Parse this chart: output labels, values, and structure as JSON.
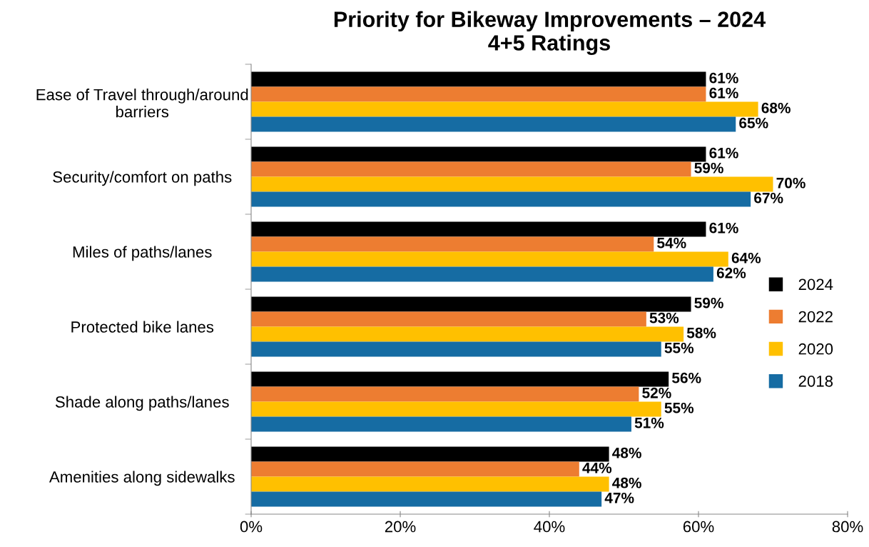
{
  "chart_data": {
    "type": "bar",
    "orientation": "horizontal",
    "title": "Priority for Bikeway Improvements – 2024\n4+5 Ratings",
    "categories": [
      "Ease of Travel through/around\nbarriers",
      "Security/comfort on paths",
      "Miles of paths/lanes",
      "Protected bike lanes",
      "Shade along paths/lanes",
      "Amenities along sidewalks"
    ],
    "series": [
      {
        "name": "2024",
        "color": "#000000",
        "values": [
          61,
          61,
          61,
          59,
          56,
          48
        ],
        "value_labels": [
          "61%",
          "61%",
          "61%",
          "59%",
          "56%",
          "48%"
        ]
      },
      {
        "name": "2022",
        "color": "#ed7d31",
        "values": [
          61,
          59,
          54,
          53,
          52,
          44
        ],
        "value_labels": [
          "61%",
          "59%",
          "54%",
          "53%",
          "52%",
          "44%"
        ]
      },
      {
        "name": "2020",
        "color": "#ffc000",
        "values": [
          68,
          70,
          64,
          58,
          55,
          48
        ],
        "value_labels": [
          "68%",
          "70%",
          "64%",
          "58%",
          "55%",
          "48%"
        ]
      },
      {
        "name": "2018",
        "color": "#166ca3",
        "values": [
          65,
          67,
          62,
          55,
          51,
          47
        ],
        "value_labels": [
          "65%",
          "67%",
          "62%",
          "55%",
          "51%",
          "47%"
        ]
      }
    ],
    "xlim": [
      0,
      80
    ],
    "xticks": [
      {
        "value": 0,
        "label": "0%"
      },
      {
        "value": 20,
        "label": "20%"
      },
      {
        "value": 40,
        "label": "40%"
      },
      {
        "value": 60,
        "label": "60%"
      },
      {
        "value": 80,
        "label": "80%"
      }
    ],
    "grid": false,
    "legend": "right"
  }
}
